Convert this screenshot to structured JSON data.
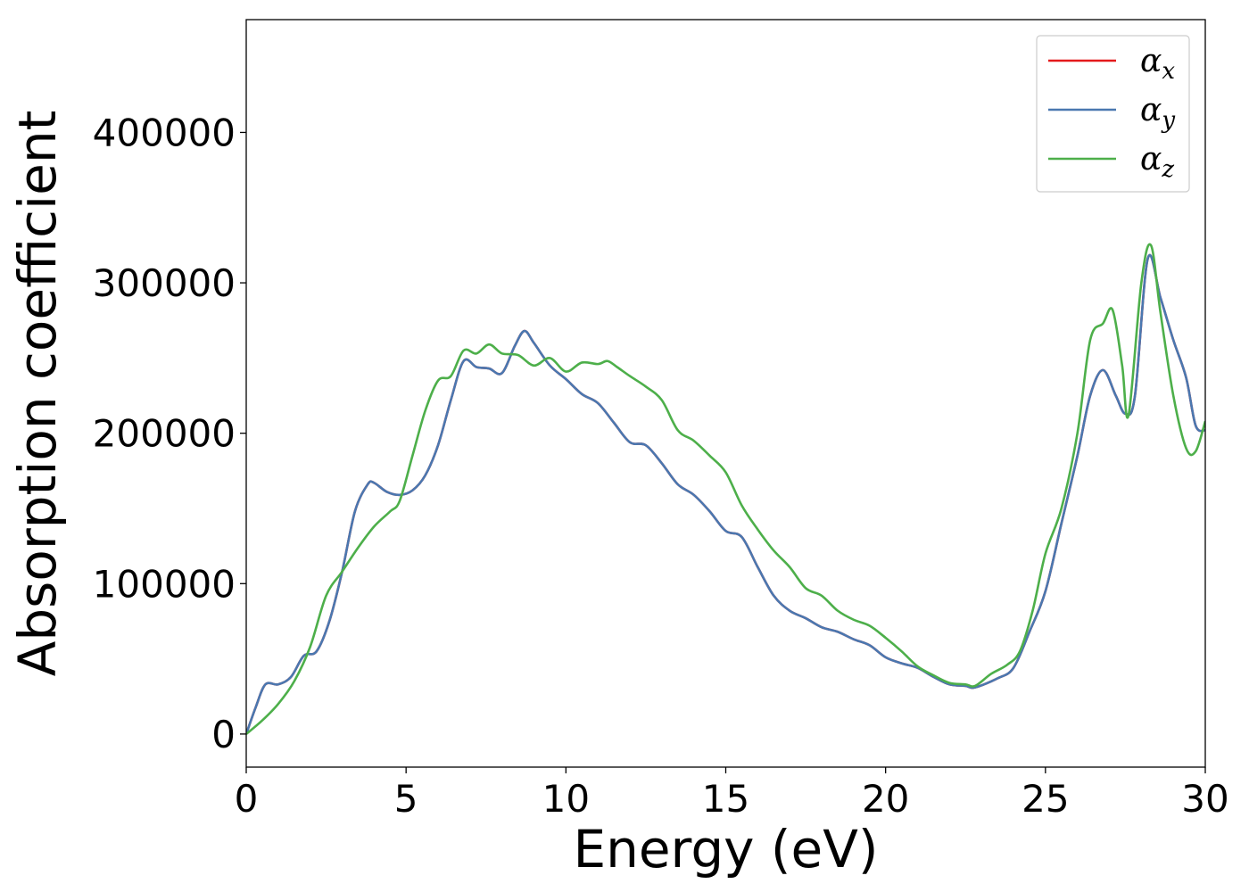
{
  "chart_data": {
    "type": "line",
    "title": "",
    "xlabel": "Energy (eV)",
    "ylabel": "Absorption coefficient",
    "xlim": [
      0,
      30
    ],
    "ylim": [
      -22000,
      475000
    ],
    "xticks": [
      0,
      5,
      10,
      15,
      20,
      25,
      30
    ],
    "yticks": [
      0,
      100000,
      200000,
      300000,
      400000
    ],
    "xtick_labels": [
      "0",
      "5",
      "10",
      "15",
      "20",
      "25",
      "30"
    ],
    "ytick_labels": [
      "0",
      "100000",
      "200000",
      "300000",
      "400000"
    ],
    "grid": false,
    "legend_position": "top-right",
    "series": [
      {
        "name": "αx",
        "legend_symbol": "α",
        "legend_subscript": "x",
        "color": "#e41a1c",
        "x": [
          0,
          0.3,
          0.6,
          1.0,
          1.4,
          1.8,
          2.2,
          2.6,
          3.0,
          3.4,
          3.8,
          4.0,
          4.4,
          4.8,
          5.2,
          5.6,
          6.0,
          6.4,
          6.8,
          7.2,
          7.6,
          8.0,
          8.4,
          8.7,
          9.0,
          9.5,
          10.0,
          10.5,
          11.0,
          11.5,
          12.0,
          12.5,
          13.0,
          13.5,
          14.0,
          14.5,
          15.0,
          15.5,
          16.0,
          16.5,
          17.0,
          17.5,
          18.0,
          18.5,
          19.0,
          19.5,
          20.0,
          20.5,
          21.0,
          21.5,
          22.0,
          22.5,
          22.8,
          23.5,
          24.0,
          24.5,
          25.0,
          25.5,
          26.0,
          26.4,
          26.8,
          27.2,
          27.5,
          27.8,
          28.2,
          28.6,
          29.0,
          29.4,
          29.7,
          30.0
        ],
        "y": [
          0,
          18000,
          33000,
          33000,
          38000,
          52000,
          55000,
          75000,
          108000,
          148000,
          166000,
          167000,
          161000,
          159000,
          162000,
          172000,
          192000,
          222000,
          248000,
          244000,
          243000,
          240000,
          258000,
          268000,
          260000,
          245000,
          236000,
          226000,
          220000,
          207000,
          194000,
          192000,
          180000,
          166000,
          159000,
          148000,
          135000,
          131000,
          111000,
          92000,
          82000,
          77000,
          71000,
          68000,
          63000,
          59000,
          51000,
          47000,
          44000,
          38000,
          33000,
          32000,
          31000,
          37000,
          44000,
          68000,
          95000,
          140000,
          185000,
          225000,
          242000,
          225000,
          213000,
          225000,
          316000,
          290000,
          262000,
          237000,
          205000,
          202000
        ]
      },
      {
        "name": "αy",
        "legend_symbol": "α",
        "legend_subscript": "y",
        "color": "#4a78b0",
        "x": [
          0,
          0.3,
          0.6,
          1.0,
          1.4,
          1.8,
          2.2,
          2.6,
          3.0,
          3.4,
          3.8,
          4.0,
          4.4,
          4.8,
          5.2,
          5.6,
          6.0,
          6.4,
          6.8,
          7.2,
          7.6,
          8.0,
          8.4,
          8.7,
          9.0,
          9.5,
          10.0,
          10.5,
          11.0,
          11.5,
          12.0,
          12.5,
          13.0,
          13.5,
          14.0,
          14.5,
          15.0,
          15.5,
          16.0,
          16.5,
          17.0,
          17.5,
          18.0,
          18.5,
          19.0,
          19.5,
          20.0,
          20.5,
          21.0,
          21.5,
          22.0,
          22.5,
          22.8,
          23.5,
          24.0,
          24.5,
          25.0,
          25.5,
          26.0,
          26.4,
          26.8,
          27.2,
          27.5,
          27.8,
          28.2,
          28.6,
          29.0,
          29.4,
          29.7,
          30.0
        ],
        "y": [
          0,
          18000,
          33000,
          33000,
          38000,
          52000,
          55000,
          75000,
          108000,
          148000,
          166000,
          167000,
          161000,
          159000,
          162000,
          172000,
          192000,
          222000,
          248000,
          244000,
          243000,
          240000,
          258000,
          268000,
          260000,
          245000,
          236000,
          226000,
          220000,
          207000,
          194000,
          192000,
          180000,
          166000,
          159000,
          148000,
          135000,
          131000,
          111000,
          92000,
          82000,
          77000,
          71000,
          68000,
          63000,
          59000,
          51000,
          47000,
          44000,
          38000,
          33000,
          32000,
          31000,
          37000,
          44000,
          68000,
          95000,
          140000,
          185000,
          225000,
          242000,
          225000,
          213000,
          225000,
          316000,
          290000,
          262000,
          237000,
          205000,
          202000
        ]
      },
      {
        "name": "αz",
        "legend_symbol": "α",
        "legend_subscript": "z",
        "color": "#4daf4a",
        "x": [
          0,
          0.5,
          1.0,
          1.5,
          2.0,
          2.5,
          3.0,
          3.5,
          4.0,
          4.5,
          4.8,
          5.2,
          5.6,
          6.0,
          6.4,
          6.8,
          7.2,
          7.6,
          8.0,
          8.5,
          9.0,
          9.5,
          10.0,
          10.5,
          11.0,
          11.3,
          11.6,
          12.0,
          12.5,
          13.0,
          13.5,
          14.0,
          14.5,
          15.0,
          15.5,
          16.0,
          16.5,
          17.0,
          17.5,
          18.0,
          18.5,
          19.0,
          19.5,
          20.0,
          20.5,
          21.0,
          21.5,
          22.0,
          22.5,
          22.8,
          23.3,
          23.8,
          24.2,
          24.6,
          25.0,
          25.5,
          26.0,
          26.4,
          26.8,
          27.1,
          27.4,
          27.6,
          28.0,
          28.3,
          28.6,
          29.0,
          29.4,
          29.7,
          30.0
        ],
        "y": [
          0,
          9000,
          20000,
          35000,
          58000,
          92000,
          108000,
          124000,
          138000,
          148000,
          155000,
          185000,
          215000,
          235000,
          238000,
          255000,
          253000,
          259000,
          253000,
          252000,
          245000,
          250000,
          241000,
          247000,
          246000,
          248000,
          244000,
          238000,
          231000,
          222000,
          202000,
          195000,
          185000,
          174000,
          152000,
          136000,
          122000,
          111000,
          97000,
          92000,
          82000,
          76000,
          72000,
          64000,
          55000,
          45000,
          39000,
          34000,
          33000,
          32000,
          40000,
          46000,
          55000,
          82000,
          120000,
          150000,
          200000,
          262000,
          273000,
          282000,
          245000,
          212000,
          300000,
          325000,
          280000,
          225000,
          190000,
          188000,
          208000
        ]
      }
    ]
  }
}
